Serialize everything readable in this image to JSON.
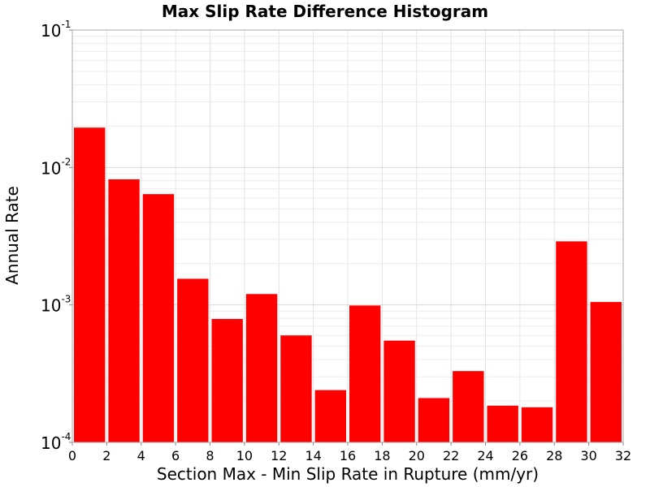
{
  "chart_data": {
    "type": "bar",
    "title": "Max Slip Rate Difference Histogram",
    "xlabel": "Section Max - Min Slip Rate in Rupture (mm/yr)",
    "ylabel": "Annual Rate",
    "xlim": [
      0,
      32
    ],
    "ylim": [
      0.0001,
      0.1
    ],
    "yscale": "log",
    "grid": true,
    "bar_color": "#ff0000",
    "bin_width": 2,
    "x": [
      1,
      3,
      5,
      7,
      9,
      11,
      13,
      15,
      17,
      19,
      21,
      23,
      25,
      27,
      29,
      31
    ],
    "values": [
      0.0195,
      0.0082,
      0.0064,
      0.00155,
      0.00079,
      0.0012,
      0.0006,
      0.00024,
      0.00099,
      0.00055,
      0.00021,
      0.00033,
      0.000185,
      0.00018,
      0.0029,
      0.00105
    ],
    "xticks": [
      "0",
      "2",
      "4",
      "6",
      "8",
      "10",
      "12",
      "14",
      "16",
      "18",
      "20",
      "22",
      "24",
      "26",
      "28",
      "30",
      "32"
    ],
    "xtick_values": [
      0,
      2,
      4,
      6,
      8,
      10,
      12,
      14,
      16,
      18,
      20,
      22,
      24,
      26,
      28,
      30,
      32
    ],
    "yticks": [
      {
        "base": "10",
        "exp": "-1"
      },
      {
        "base": "10",
        "exp": "-2"
      },
      {
        "base": "10",
        "exp": "-3"
      },
      {
        "base": "10",
        "exp": "-4"
      }
    ],
    "ytick_values": [
      0.1,
      0.01,
      0.001,
      0.0001
    ]
  }
}
